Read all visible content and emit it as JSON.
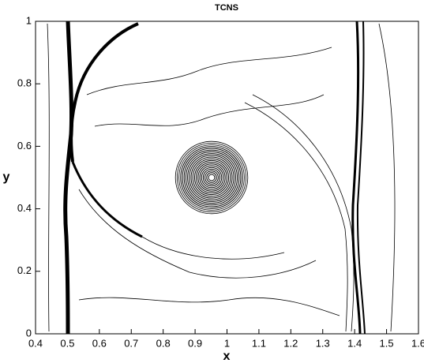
{
  "chart_data": {
    "type": "contour",
    "title": "TCNS",
    "x_label": "x",
    "y_label": "y",
    "xlim": [
      0.4,
      1.6
    ],
    "ylim": [
      0,
      1
    ],
    "xticks": [
      0.4,
      0.5,
      0.6,
      0.7,
      0.8,
      0.9,
      1,
      1.1,
      1.2,
      1.3,
      1.4,
      1.5,
      1.6
    ],
    "yticks": [
      0,
      0.2,
      0.4,
      0.6,
      0.8,
      1
    ],
    "color": "#000000"
  }
}
